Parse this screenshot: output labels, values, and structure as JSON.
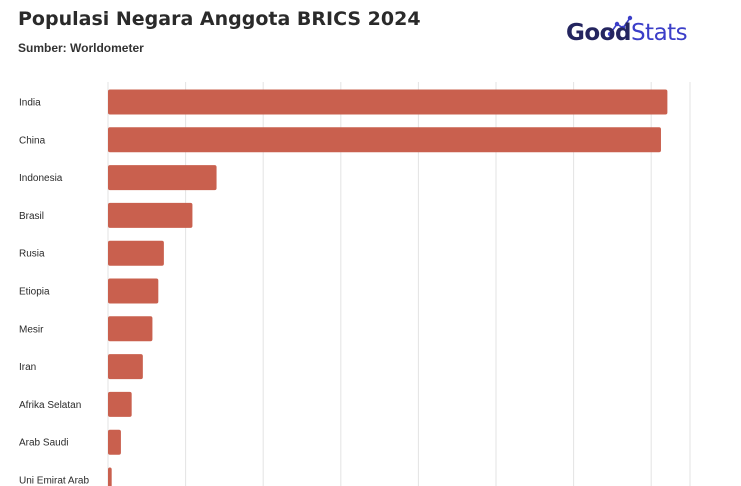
{
  "header": {
    "title": "Populasi Negara Anggota BRICS 2024",
    "subtitle": "Sumber: Worldometer"
  },
  "logo": {
    "part1": "Good",
    "part2": "Stats",
    "color_dark": "#24255f",
    "color_accent": "#3b3ec8"
  },
  "chart_data": {
    "type": "bar",
    "orientation": "horizontal",
    "categories": [
      "India",
      "China",
      "Indonesia",
      "Brasil",
      "Rusia",
      "Etiopia",
      "Mesir",
      "Iran",
      "Afrika Selatan",
      "Arab Saudi",
      "Uni Emirat Arab"
    ],
    "values": [
      1441.7,
      1425.2,
      279.8,
      217.6,
      144.0,
      129.7,
      114.5,
      89.8,
      61.0,
      33.3,
      9.5
    ],
    "unit_hint": "million",
    "xlim": [
      0,
      1500
    ],
    "grid": true,
    "legend": "none",
    "bar_color": "#c9604e",
    "title": "Populasi Negara Anggota BRICS 2024",
    "xlabel": "",
    "ylabel": ""
  }
}
